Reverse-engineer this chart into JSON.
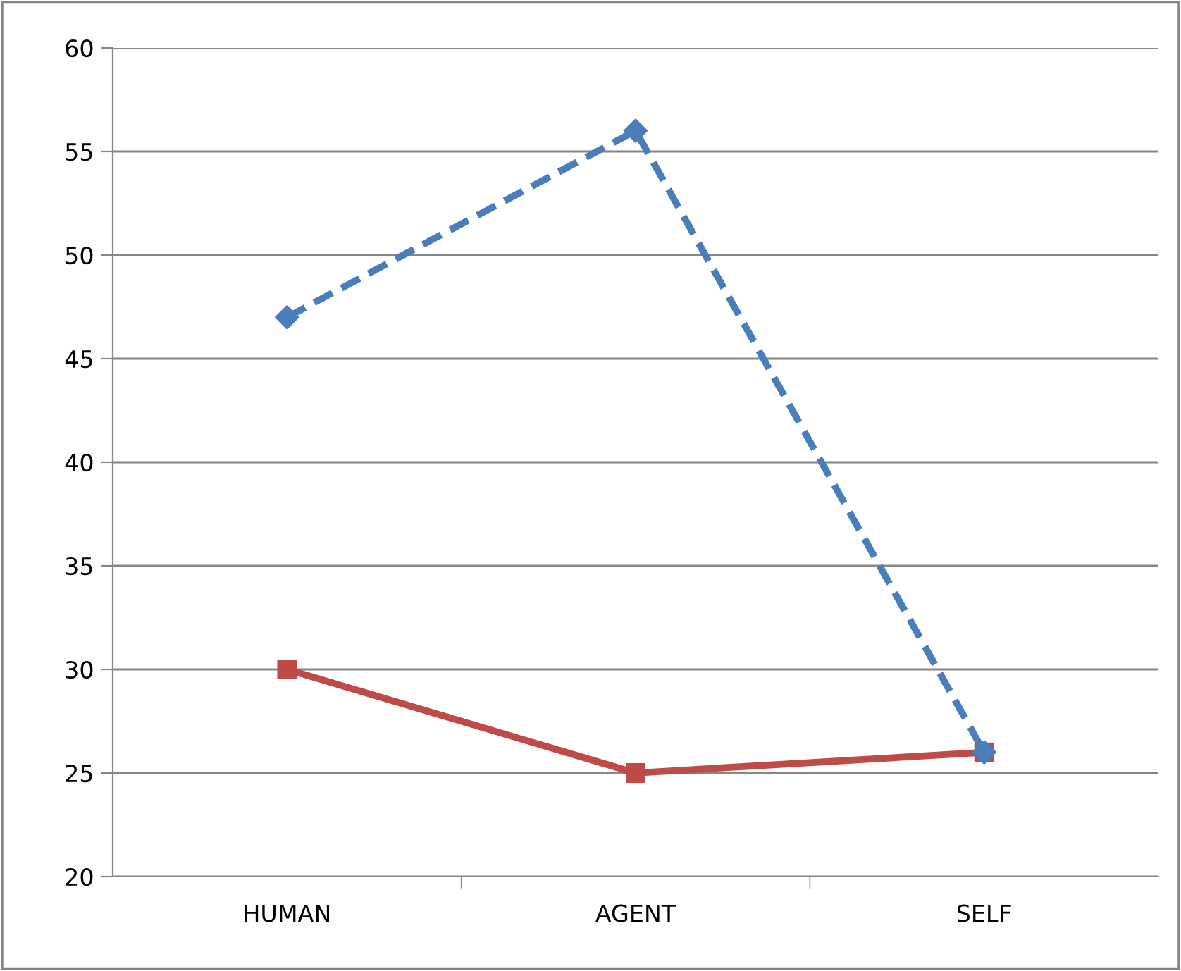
{
  "chart_data": {
    "type": "line",
    "categories": [
      "HUMAN",
      "AGENT",
      "SELF"
    ],
    "series": [
      {
        "color": "#4a7ebb",
        "values": [
          47,
          56,
          26
        ],
        "marker": "diamond",
        "line_style": "dashed"
      },
      {
        "color": "#be4b48",
        "values": [
          30,
          25,
          26
        ],
        "marker": "square",
        "line_style": "solid"
      }
    ],
    "ylim": [
      20,
      60
    ],
    "yticks": [
      20,
      25,
      30,
      35,
      40,
      45,
      50,
      55,
      60
    ],
    "grid": "y",
    "legend": false
  }
}
